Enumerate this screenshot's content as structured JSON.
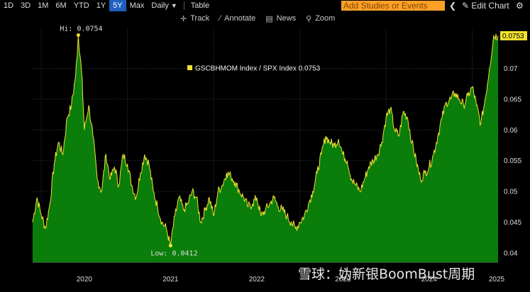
{
  "toolbar": {
    "periods": [
      "1D",
      "3D",
      "1M",
      "6M",
      "YTD",
      "1Y",
      "5Y",
      "Max"
    ],
    "active_period": "5Y",
    "interval": "Daily",
    "table": "Table",
    "studies_placeholder": "Add Studies or Events",
    "edit_chart": "Edit Chart"
  },
  "subbar": {
    "track": "Track",
    "annotate": "Annotate",
    "news": "News",
    "zoom": "Zoom"
  },
  "colors": {
    "area_fill": "#0a7d0a",
    "line": "#f2e230",
    "active_button": "#1f5fbf",
    "studies_box": "#ffa028"
  },
  "watermark": "雪球：妫新银BoomBust周期",
  "chart_data": {
    "type": "area",
    "legend": "GSCBHMOM Index / SPX Index 0.0753",
    "last_value": "0.0753",
    "high_label": "Hi: 0.0754",
    "low_label": "Low: 0.0412",
    "x_ticks": [
      "2020",
      "2021",
      "2022",
      "2023",
      "2024",
      "2025"
    ],
    "y_ticks": [
      "0.04",
      "0.045",
      "0.05",
      "0.055",
      "0.06",
      "0.065",
      "0.07"
    ],
    "ylim": [
      0.0385,
      0.0765
    ],
    "xlim": [
      2019.9,
      2025.3
    ],
    "grid": true,
    "x": [
      2019.9,
      2019.95,
      2020.0,
      2020.05,
      2020.1,
      2020.15,
      2020.2,
      2020.25,
      2020.3,
      2020.35,
      2020.4,
      2020.43,
      2020.47,
      2020.5,
      2020.55,
      2020.6,
      2020.65,
      2020.7,
      2020.75,
      2020.8,
      2020.85,
      2020.9,
      2020.95,
      2021.0,
      2021.05,
      2021.1,
      2021.15,
      2021.2,
      2021.25,
      2021.3,
      2021.35,
      2021.4,
      2021.45,
      2021.5,
      2021.55,
      2021.6,
      2021.65,
      2021.7,
      2021.75,
      2021.8,
      2021.85,
      2021.9,
      2021.95,
      2022.0,
      2022.05,
      2022.1,
      2022.15,
      2022.2,
      2022.25,
      2022.3,
      2022.35,
      2022.4,
      2022.45,
      2022.5,
      2022.55,
      2022.6,
      2022.65,
      2022.7,
      2022.75,
      2022.8,
      2022.85,
      2022.9,
      2022.95,
      2023.0,
      2023.05,
      2023.1,
      2023.15,
      2023.2,
      2023.25,
      2023.3,
      2023.35,
      2023.4,
      2023.45,
      2023.5,
      2023.55,
      2023.6,
      2023.65,
      2023.7,
      2023.75,
      2023.8,
      2023.85,
      2023.9,
      2023.95,
      2024.0,
      2024.05,
      2024.1,
      2024.15,
      2024.2,
      2024.25,
      2024.3,
      2024.35,
      2024.4,
      2024.45,
      2024.5,
      2024.55,
      2024.6,
      2024.65,
      2024.7,
      2024.75,
      2024.8,
      2024.85,
      2024.9,
      2024.95,
      2025.0,
      2025.05,
      2025.1,
      2025.15,
      2025.2,
      2025.25,
      2025.3
    ],
    "values": [
      0.045,
      0.049,
      0.0462,
      0.044,
      0.048,
      0.0545,
      0.058,
      0.056,
      0.062,
      0.064,
      0.069,
      0.0754,
      0.069,
      0.06,
      0.064,
      0.059,
      0.052,
      0.05,
      0.056,
      0.052,
      0.054,
      0.051,
      0.056,
      0.0545,
      0.051,
      0.049,
      0.053,
      0.056,
      0.0545,
      0.05,
      0.0475,
      0.045,
      0.044,
      0.0412,
      0.046,
      0.049,
      0.047,
      0.048,
      0.05,
      0.049,
      0.045,
      0.047,
      0.049,
      0.046,
      0.05,
      0.051,
      0.053,
      0.0525,
      0.0515,
      0.05,
      0.049,
      0.0475,
      0.048,
      0.049,
      0.046,
      0.047,
      0.048,
      0.049,
      0.0475,
      0.047,
      0.046,
      0.045,
      0.044,
      0.045,
      0.046,
      0.048,
      0.05,
      0.053,
      0.056,
      0.059,
      0.058,
      0.0575,
      0.0585,
      0.056,
      0.055,
      0.052,
      0.051,
      0.05,
      0.052,
      0.054,
      0.055,
      0.056,
      0.058,
      0.062,
      0.0635,
      0.06,
      0.059,
      0.063,
      0.062,
      0.058,
      0.055,
      0.052,
      0.053,
      0.054,
      0.056,
      0.059,
      0.062,
      0.0645,
      0.065,
      0.066,
      0.065,
      0.064,
      0.0655,
      0.067,
      0.064,
      0.061,
      0.065,
      0.07,
      0.0753,
      0.0753
    ]
  }
}
